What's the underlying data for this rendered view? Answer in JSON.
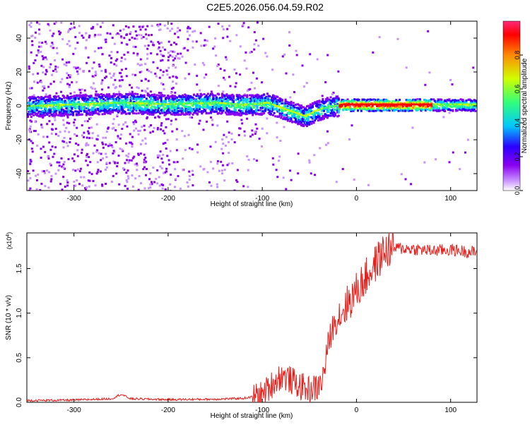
{
  "page": {
    "title": "C2E5.2026.056.04.59.R02"
  },
  "colors": {
    "line": "#e8201c",
    "axis": "#000000",
    "colormap": [
      "#ffffff",
      "#d8c4f4",
      "#8a00f0",
      "#2a00ff",
      "#00c8ff",
      "#30ff7a",
      "#d0ff00",
      "#ff8a00",
      "#ff0000"
    ]
  },
  "chart_data": [
    {
      "type": "heatmap",
      "title": "C2E5.2026.056.04.59.R02",
      "xlabel": "Height of straight line (km)",
      "ylabel": "Frequency (Hz)",
      "xlim": [
        -350,
        128
      ],
      "ylim": [
        -50,
        50
      ],
      "x_ticks": [
        -300,
        -200,
        -100,
        0,
        100
      ],
      "y_ticks": [
        -40,
        -20,
        0,
        20,
        40
      ],
      "colorbar": {
        "label": "Normalized spectral amplitude",
        "range": [
          0,
          1
        ],
        "ticks": [
          "0.0",
          "0.2",
          "0.4",
          "0.6",
          "0.8"
        ],
        "tick_values": [
          0,
          0.2,
          0.4,
          0.6,
          0.8
        ]
      },
      "ridge": {
        "x": [
          -350,
          -300,
          -250,
          -200,
          -150,
          -125,
          -110,
          -95,
          -80,
          -70,
          -60,
          -55,
          -45,
          -35,
          -25,
          -15,
          0,
          50,
          80,
          128
        ],
        "y": [
          0,
          1,
          2,
          1,
          2,
          1,
          1,
          2,
          -1,
          -3,
          -5,
          -6,
          -3,
          -1,
          0,
          1,
          1,
          1,
          1,
          1
        ]
      }
    },
    {
      "type": "line",
      "xlabel": "Height of straight line (km)",
      "ylabel": "SNR (10 * v/v)",
      "y_scale_label": "(x10",
      "y_scale_exp": "4",
      "xlim": [
        -350,
        128
      ],
      "ylim": [
        0,
        19000
      ],
      "x_ticks": [
        -300,
        -200,
        -100,
        0,
        100
      ],
      "y_tick_labels": [
        "0.0",
        "0.5",
        "1.0",
        "1.5"
      ],
      "y_tick_values": [
        0,
        5000,
        10000,
        15000
      ],
      "series": [
        {
          "x": [
            -350,
            -300,
            -260,
            -250,
            -240,
            -200,
            -150,
            -120,
            -100,
            -90,
            -80,
            -70,
            -60,
            -50,
            -40,
            -35,
            -30,
            -25,
            -20,
            -10,
            0,
            10,
            20,
            30,
            40,
            60,
            80,
            100,
            128
          ],
          "y": [
            200,
            250,
            400,
            900,
            400,
            300,
            350,
            450,
            800,
            2000,
            3000,
            2500,
            1800,
            1400,
            1700,
            3000,
            6500,
            8500,
            9500,
            11000,
            12500,
            14000,
            15500,
            17000,
            17300,
            17200,
            17000,
            17100,
            16800
          ]
        }
      ]
    }
  ]
}
